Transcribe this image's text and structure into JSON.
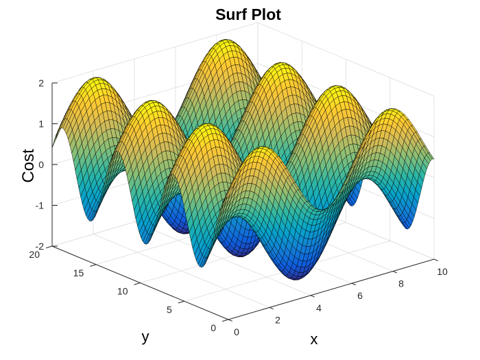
{
  "chart_data": {
    "type": "surface",
    "title": "Surf Plot",
    "xlabel": "x",
    "ylabel": "y",
    "zlabel": "Cost",
    "function": "z = sin(x) + cos(y)",
    "x_range": [
      0,
      10
    ],
    "y_range": [
      0,
      20
    ],
    "z_range": [
      -2,
      2
    ],
    "x_ticks": [
      0,
      2,
      4,
      6,
      8,
      10
    ],
    "y_ticks": [
      0,
      5,
      10,
      15,
      20
    ],
    "z_ticks": [
      -2,
      -1,
      0,
      1,
      2
    ],
    "x_samples": 50,
    "y_samples": 100,
    "colormap": "parula",
    "colormap_stops": [
      "#352a87",
      "#0f5cdd",
      "#1481d6",
      "#06a4ca",
      "#2eb7a4",
      "#87bf77",
      "#d1bb59",
      "#fec832",
      "#f9fb0e"
    ],
    "edge_color": "#000000",
    "grid": true,
    "view": {
      "azimuth": -37.5,
      "elevation": 30
    }
  }
}
